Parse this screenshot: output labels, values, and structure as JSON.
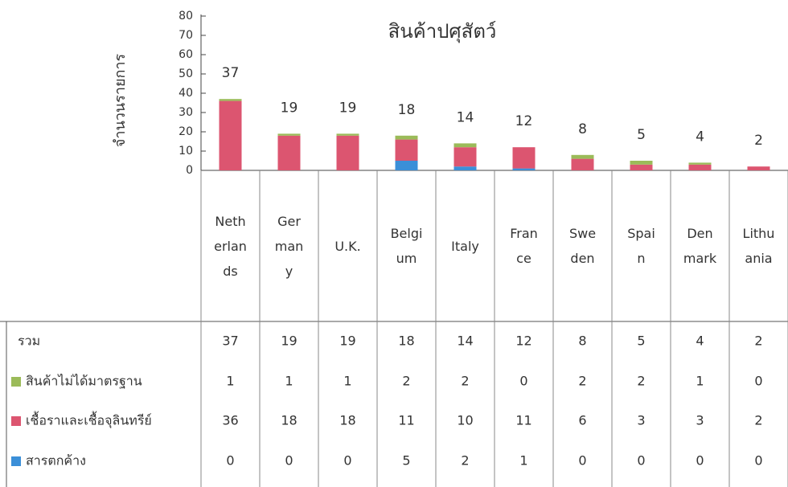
{
  "chart_data": {
    "type": "bar",
    "stacked": true,
    "title": "สินค้าปศุสัตว์",
    "y_label": "จำนวนรายการ",
    "categories": [
      "Netherlands",
      "Germany",
      "U.K.",
      "Belgium",
      "Italy",
      "France",
      "Sweden",
      "Spain",
      "Denmark",
      "Lithuania"
    ],
    "totals_label": "รวม",
    "totals": [
      37,
      19,
      19,
      18,
      14,
      12,
      8,
      5,
      4,
      2
    ],
    "series": [
      {
        "name": "สินค้าไม่ได้มาตรฐาน",
        "color": "#9bbb59",
        "values": [
          1,
          1,
          1,
          2,
          2,
          0,
          2,
          2,
          1,
          0
        ]
      },
      {
        "name": "เชื้อราและเชื้อจุลินทรีย์",
        "color": "#dc5570",
        "values": [
          36,
          18,
          18,
          11,
          10,
          11,
          6,
          3,
          3,
          2
        ]
      },
      {
        "name": "สารตกค้าง",
        "color": "#3b8fd8",
        "values": [
          0,
          0,
          0,
          5,
          2,
          1,
          0,
          0,
          0,
          0
        ]
      }
    ],
    "ylim": [
      0,
      80
    ],
    "yticks": [
      0,
      10,
      20,
      30,
      40,
      50,
      60,
      70,
      80
    ]
  }
}
